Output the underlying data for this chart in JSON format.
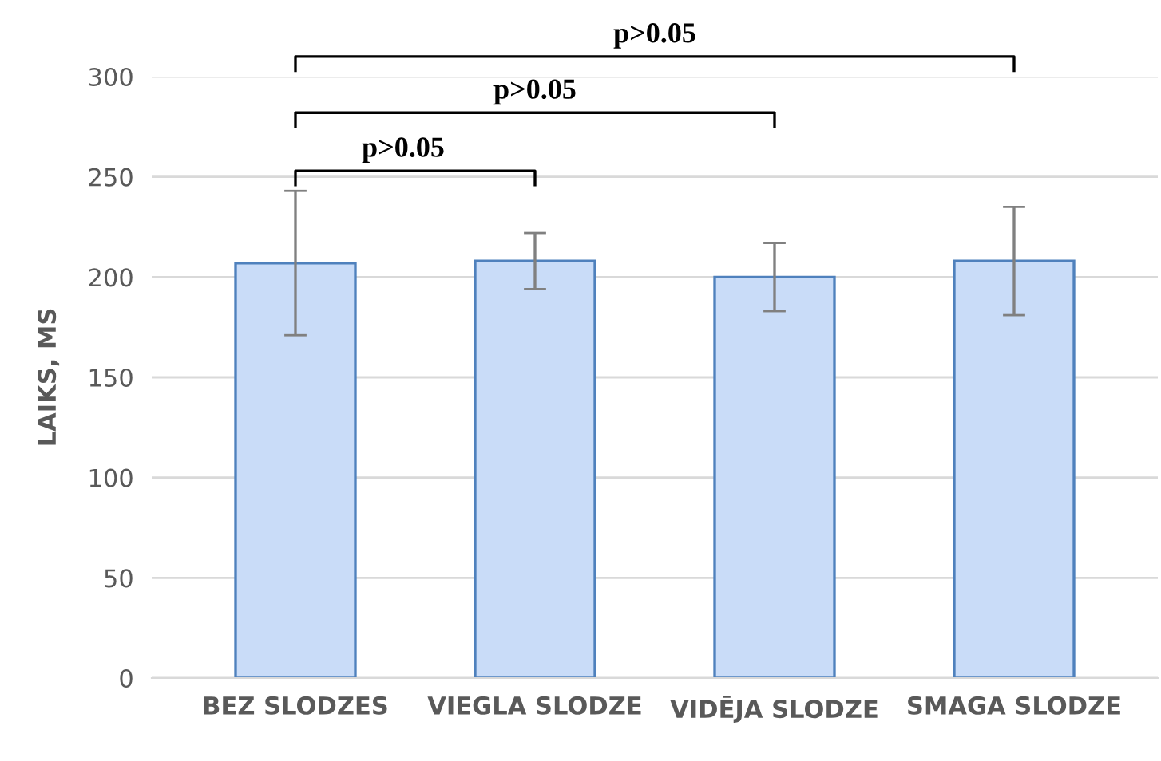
{
  "chart_data": {
    "type": "bar",
    "ylabel": "LAIKS, MS",
    "categories": [
      "BEZ SLODZES",
      "VIEGLA SLODZE",
      "VIDĒJA SLODZE",
      "SMAGA SLODZE"
    ],
    "values": [
      207,
      208,
      200,
      208
    ],
    "errors": [
      36,
      14,
      17,
      27
    ],
    "color": "#c9dcf8",
    "ylim": [
      0,
      300
    ],
    "yticks": [
      0,
      50,
      100,
      150,
      200,
      250,
      300
    ],
    "grid": "y",
    "legend": false,
    "annotations": [
      "p>0.05",
      "p>0.05",
      "p>0.05"
    ]
  }
}
